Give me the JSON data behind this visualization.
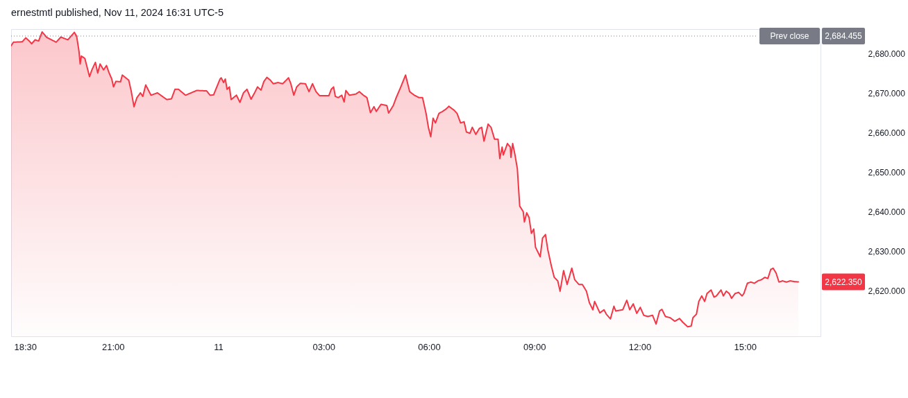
{
  "chart_data": {
    "type": "area",
    "title": "ernestmtl published, Nov 11, 2024 16:31 UTC-5",
    "x": [
      "2024-11-10T18:06",
      "2024-11-10T18:10",
      "2024-11-10T18:25",
      "2024-11-10T18:31",
      "2024-11-10T18:37",
      "2024-11-10T18:41",
      "2024-11-10T18:47",
      "2024-11-10T18:53",
      "2024-11-10T18:59",
      "2024-11-10T19:07",
      "2024-11-10T19:23",
      "2024-11-10T19:31",
      "2024-11-10T19:43",
      "2024-11-10T19:54",
      "2024-11-10T19:58",
      "2024-11-10T20:02",
      "2024-11-10T20:04",
      "2024-11-10T20:06",
      "2024-11-10T20:12",
      "2024-11-10T20:20",
      "2024-11-10T20:24",
      "2024-11-10T20:30",
      "2024-11-10T20:34",
      "2024-11-10T20:38",
      "2024-11-10T20:44",
      "2024-11-10T20:49",
      "2024-11-10T20:53",
      "2024-11-10T20:58",
      "2024-11-10T21:01",
      "2024-11-10T21:05",
      "2024-11-10T21:13",
      "2024-11-10T21:16",
      "2024-11-10T21:27",
      "2024-11-10T21:31",
      "2024-11-10T21:36",
      "2024-11-10T21:41",
      "2024-11-10T21:47",
      "2024-11-10T21:51",
      "2024-11-10T21:56",
      "2024-11-10T22:05",
      "2024-11-10T22:16",
      "2024-11-10T22:32",
      "2024-11-10T22:40",
      "2024-11-10T22:46",
      "2024-11-10T22:52",
      "2024-11-10T23:04",
      "2024-11-10T23:23",
      "2024-11-10T23:40",
      "2024-11-10T23:46",
      "2024-11-10T23:52",
      "2024-11-10T23:55",
      "2024-11-11T00:03",
      "2024-11-11T00:05",
      "2024-11-11T00:09",
      "2024-11-11T00:12",
      "2024-11-11T00:15",
      "2024-11-11T00:19",
      "2024-11-11T00:22",
      "2024-11-11T00:31",
      "2024-11-11T00:37",
      "2024-11-11T00:43",
      "2024-11-11T00:49",
      "2024-11-11T00:56",
      "2024-11-11T01:02",
      "2024-11-11T01:07",
      "2024-11-11T01:13",
      "2024-11-11T01:18",
      "2024-11-11T01:23",
      "2024-11-11T01:29",
      "2024-11-11T01:34",
      "2024-11-11T01:42",
      "2024-11-11T01:50",
      "2024-11-11T02:00",
      "2024-11-11T02:04",
      "2024-11-11T02:09",
      "2024-11-11T02:14",
      "2024-11-11T02:20",
      "2024-11-11T02:29",
      "2024-11-11T02:35",
      "2024-11-11T02:41",
      "2024-11-11T02:47",
      "2024-11-11T02:53",
      "2024-11-11T03:09",
      "2024-11-11T03:13",
      "2024-11-11T03:17",
      "2024-11-11T03:20",
      "2024-11-11T03:25",
      "2024-11-11T03:31",
      "2024-11-11T03:35",
      "2024-11-11T03:38",
      "2024-11-11T03:44",
      "2024-11-11T03:55",
      "2024-11-11T04:01",
      "2024-11-11T04:08",
      "2024-11-11T04:14",
      "2024-11-11T04:20",
      "2024-11-11T04:26",
      "2024-11-11T04:30",
      "2024-11-11T04:38",
      "2024-11-11T04:48",
      "2024-11-11T04:51",
      "2024-11-11T04:59",
      "2024-11-11T05:04",
      "2024-11-11T05:11",
      "2024-11-11T05:20",
      "2024-11-11T05:27",
      "2024-11-11T05:35",
      "2024-11-11T05:43",
      "2024-11-11T05:49",
      "2024-11-11T05:55",
      "2024-11-11T05:59",
      "2024-11-11T06:03",
      "2024-11-11T06:07",
      "2024-11-11T06:11",
      "2024-11-11T06:17",
      "2024-11-11T06:23",
      "2024-11-11T06:29",
      "2024-11-11T06:34",
      "2024-11-11T06:43",
      "2024-11-11T06:48",
      "2024-11-11T06:54",
      "2024-11-11T07:00",
      "2024-11-11T07:04",
      "2024-11-11T07:10",
      "2024-11-11T07:14",
      "2024-11-11T07:20",
      "2024-11-11T07:26",
      "2024-11-11T07:30",
      "2024-11-11T07:34",
      "2024-11-11T07:41",
      "2024-11-11T07:46",
      "2024-11-11T07:52",
      "2024-11-11T07:58",
      "2024-11-11T08:01",
      "2024-11-11T08:05",
      "2024-11-11T08:07",
      "2024-11-11T08:14",
      "2024-11-11T08:19",
      "2024-11-11T08:20",
      "2024-11-11T08:23",
      "2024-11-11T08:27",
      "2024-11-11T08:31",
      "2024-11-11T08:35",
      "2024-11-11T08:41",
      "2024-11-11T08:43",
      "2024-11-11T08:47",
      "2024-11-11T08:51",
      "2024-11-11T08:55",
      "2024-11-11T08:59",
      "2024-11-11T09:02",
      "2024-11-11T09:10",
      "2024-11-11T09:14",
      "2024-11-11T09:19",
      "2024-11-11T09:23",
      "2024-11-11T09:29",
      "2024-11-11T09:34",
      "2024-11-11T09:40",
      "2024-11-11T09:44",
      "2024-11-11T09:50",
      "2024-11-11T09:56",
      "2024-11-11T10:04",
      "2024-11-11T10:09",
      "2024-11-11T10:16",
      "2024-11-11T10:22",
      "2024-11-11T10:29",
      "2024-11-11T10:34",
      "2024-11-11T10:40",
      "2024-11-11T10:43",
      "2024-11-11T10:52",
      "2024-11-11T10:59",
      "2024-11-11T11:03",
      "2024-11-11T11:10",
      "2024-11-11T11:16",
      "2024-11-11T11:19",
      "2024-11-11T11:31",
      "2024-11-11T11:38",
      "2024-11-11T11:43",
      "2024-11-11T11:49",
      "2024-11-11T11:55",
      "2024-11-11T12:01",
      "2024-11-11T12:07",
      "2024-11-11T12:14",
      "2024-11-11T12:22",
      "2024-11-11T12:28",
      "2024-11-11T12:34",
      "2024-11-11T12:38",
      "2024-11-11T12:44",
      "2024-11-11T12:52",
      "2024-11-11T13:00",
      "2024-11-11T13:08",
      "2024-11-11T13:14",
      "2024-11-11T13:22",
      "2024-11-11T13:28",
      "2024-11-11T13:31",
      "2024-11-11T13:37",
      "2024-11-11T13:41",
      "2024-11-11T13:46",
      "2024-11-11T13:51",
      "2024-11-11T13:55",
      "2024-11-11T14:02",
      "2024-11-11T14:07",
      "2024-11-11T14:11",
      "2024-11-11T14:19",
      "2024-11-11T14:23",
      "2024-11-11T14:28",
      "2024-11-11T14:33",
      "2024-11-11T14:37",
      "2024-11-11T14:43",
      "2024-11-11T14:49",
      "2024-11-11T14:55",
      "2024-11-11T14:58",
      "2024-11-11T15:04",
      "2024-11-11T15:10",
      "2024-11-11T15:16",
      "2024-11-11T15:22",
      "2024-11-11T15:28",
      "2024-11-11T15:34",
      "2024-11-11T15:39",
      "2024-11-11T15:44",
      "2024-11-11T15:48",
      "2024-11-11T15:53",
      "2024-11-11T15:58",
      "2024-11-11T16:04",
      "2024-11-11T16:11",
      "2024-11-11T16:17",
      "2024-11-11T16:25",
      "2024-11-11T16:31"
    ],
    "series": [
      {
        "color": "#f23645",
        "values": [
          2682.0,
          2682.9,
          2683.0,
          2684.0,
          2683.2,
          2682.5,
          2683.5,
          2683.2,
          2685.5,
          2684.1,
          2682.9,
          2684.2,
          2683.5,
          2685.4,
          2684.4,
          2680.6,
          2677.4,
          2679.4,
          2678.8,
          2674.2,
          2675.9,
          2677.8,
          2675.1,
          2677.4,
          2675.9,
          2677.0,
          2675.3,
          2673.6,
          2671.6,
          2673.0,
          2672.9,
          2674.6,
          2673.3,
          2670.7,
          2666.6,
          2668.9,
          2670.1,
          2669.2,
          2672.1,
          2669.5,
          2670.1,
          2668.4,
          2668.6,
          2671.0,
          2671.0,
          2669.5,
          2670.7,
          2670.6,
          2669.5,
          2669.6,
          2670.7,
          2673.6,
          2673.9,
          2672.7,
          2673.6,
          2671.0,
          2671.6,
          2668.4,
          2669.5,
          2667.7,
          2670.1,
          2671.0,
          2668.5,
          2670.1,
          2671.6,
          2670.8,
          2673.0,
          2674.0,
          2673.3,
          2672.4,
          2672.7,
          2672.4,
          2673.9,
          2672.4,
          2669.5,
          2671.6,
          2672.5,
          2672.4,
          2670.4,
          2672.4,
          2670.4,
          2669.4,
          2669.4,
          2671.0,
          2671.6,
          2669.2,
          2668.9,
          2669.5,
          2667.8,
          2670.7,
          2669.5,
          2669.8,
          2670.4,
          2669.5,
          2668.9,
          2665.1,
          2666.6,
          2665.4,
          2667.2,
          2666.9,
          2665.0,
          2666.9,
          2668.9,
          2671.3,
          2674.6,
          2670.4,
          2669.5,
          2668.9,
          2668.9,
          2664.9,
          2661.4,
          2659.0,
          2663.7,
          2662.5,
          2664.9,
          2665.4,
          2666.0,
          2666.7,
          2665.7,
          2664.9,
          2662.5,
          2662.8,
          2660.2,
          2659.9,
          2661.4,
          2659.6,
          2661.1,
          2661.4,
          2657.9,
          2662.2,
          2661.4,
          2658.4,
          2658.4,
          2653.5,
          2656.4,
          2654.4,
          2657.3,
          2656.4,
          2653.8,
          2657.3,
          2654.4,
          2650.9,
          2641.5,
          2640.1,
          2637.5,
          2639.8,
          2638.6,
          2634.6,
          2635.7,
          2631.1,
          2628.7,
          2633.4,
          2634.3,
          2630.5,
          2626.4,
          2623.5,
          2622.6,
          2620.0,
          2625.2,
          2621.7,
          2625.8,
          2622.9,
          2621.7,
          2621.7,
          2620.0,
          2617.1,
          2615.3,
          2617.4,
          2614.5,
          2615.3,
          2614.2,
          2613.0,
          2616.2,
          2615.0,
          2615.3,
          2617.7,
          2615.3,
          2616.8,
          2614.4,
          2615.9,
          2613.9,
          2613.6,
          2613.9,
          2611.7,
          2615.0,
          2615.4,
          2613.6,
          2613.3,
          2612.4,
          2613.1,
          2612.1,
          2611.0,
          2611.2,
          2613.3,
          2614.2,
          2617.4,
          2618.8,
          2617.4,
          2619.4,
          2620.3,
          2618.5,
          2618.8,
          2620.3,
          2618.8,
          2620.0,
          2619.4,
          2618.2,
          2619.4,
          2619.7,
          2618.8,
          2619.4,
          2622.0,
          2622.3,
          2622.0,
          2622.6,
          2622.9,
          2623.5,
          2623.2,
          2625.5,
          2625.8,
          2624.6,
          2622.3,
          2622.6,
          2622.3,
          2622.6,
          2622.4,
          2622.35
        ]
      }
    ],
    "xlim": [
      "2024-11-10T18:06",
      "2024-11-11T17:09"
    ],
    "xticks": [
      {
        "value": "2024-11-10T18:30",
        "label": "18:30"
      },
      {
        "value": "2024-11-10T21:00",
        "label": "21:00"
      },
      {
        "value": "2024-11-11T00:00",
        "label": "11"
      },
      {
        "value": "2024-11-11T03:00",
        "label": "03:00"
      },
      {
        "value": "2024-11-11T06:00",
        "label": "06:00"
      },
      {
        "value": "2024-11-11T09:00",
        "label": "09:00"
      },
      {
        "value": "2024-11-11T12:00",
        "label": "12:00"
      },
      {
        "value": "2024-11-11T15:00",
        "label": "15:00"
      }
    ],
    "ylim": [
      2608.6,
      2686.2
    ],
    "yticks": [
      {
        "value": 2620,
        "label": "2,620.000"
      },
      {
        "value": 2630,
        "label": "2,630.000"
      },
      {
        "value": 2640,
        "label": "2,640.000"
      },
      {
        "value": 2650,
        "label": "2,650.000"
      },
      {
        "value": 2660,
        "label": "2,660.000"
      },
      {
        "value": 2670,
        "label": "2,670.000"
      },
      {
        "value": 2680,
        "label": "2,680.000"
      }
    ],
    "ref_lines": [
      {
        "axis": "y",
        "value": 2684.455,
        "label": "Prev close",
        "color": "#787b86",
        "line_style": "dotted"
      }
    ],
    "annotations": [
      "2,684.455",
      "2,622.350"
    ],
    "grid": false
  }
}
